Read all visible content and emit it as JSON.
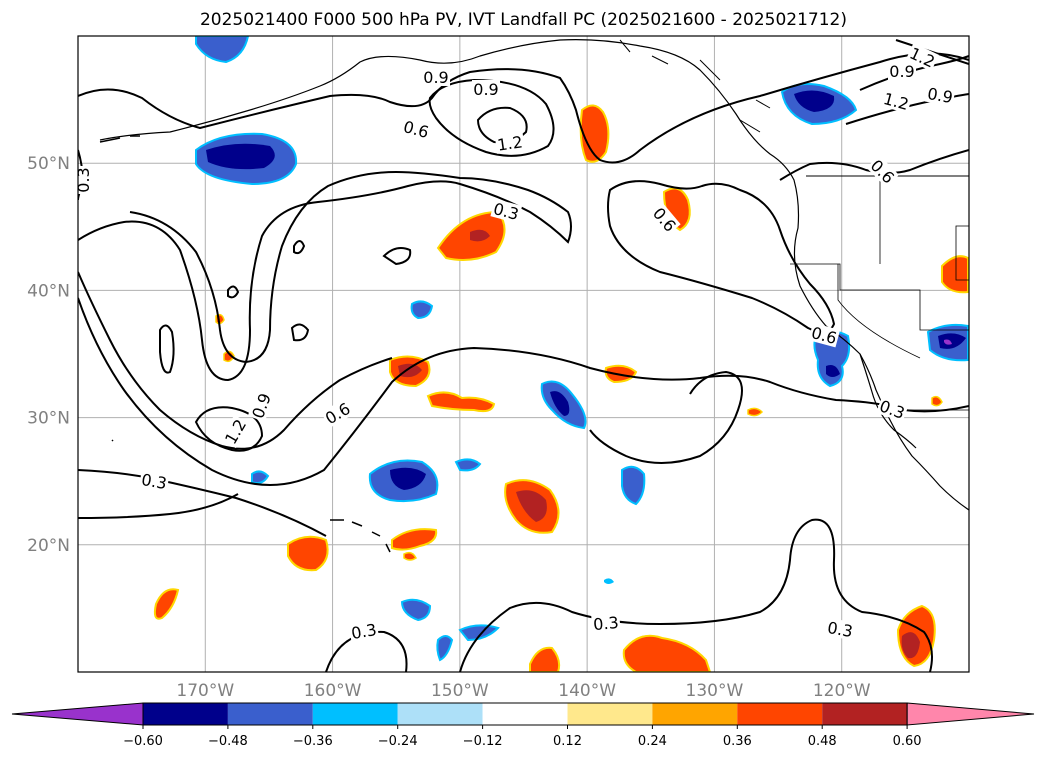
{
  "title": "2025021400 F000 500 hPa PV, IVT Landfall PC (2025021600 - 2025021712)",
  "map": {
    "lon_range": [
      -180,
      -110
    ],
    "lat_range": [
      10,
      60
    ],
    "lat_ticks": [
      {
        "value": 50,
        "label": "50°N"
      },
      {
        "value": 40,
        "label": "40°N"
      },
      {
        "value": 30,
        "label": "30°N"
      },
      {
        "value": 20,
        "label": "20°N"
      }
    ],
    "lon_ticks": [
      {
        "value": -170,
        "label": "170°W"
      },
      {
        "value": -160,
        "label": "160°W"
      },
      {
        "value": -150,
        "label": "150°W"
      },
      {
        "value": -140,
        "label": "140°W"
      },
      {
        "value": -130,
        "label": "130°W"
      },
      {
        "value": -120,
        "label": "120°W"
      }
    ],
    "contour_labels": [
      "0.9",
      "0.9",
      "0.9",
      "1.2",
      "0.6",
      "1.2",
      "0.3",
      "0.6",
      "0.6",
      "0.6",
      "0.9",
      "1.2",
      "0.6",
      "0.3",
      "0.3",
      "0.3",
      "0.3",
      "0.3",
      "1.2",
      "0.9",
      "0.6",
      "0.3"
    ]
  },
  "colorbar": {
    "colors": [
      "#9932CC",
      "#00008B",
      "#3A5FCD",
      "#00BFFF",
      "#ADE0F8",
      "#FFFFFF",
      "#FFE88C",
      "#FFA500",
      "#FF4500",
      "#B22222",
      "#FF86AB"
    ],
    "tick_labels": [
      "−0.60",
      "−0.48",
      "−0.36",
      "−0.24",
      "−0.12",
      "0.12",
      "0.24",
      "0.36",
      "0.48",
      "0.60"
    ]
  }
}
